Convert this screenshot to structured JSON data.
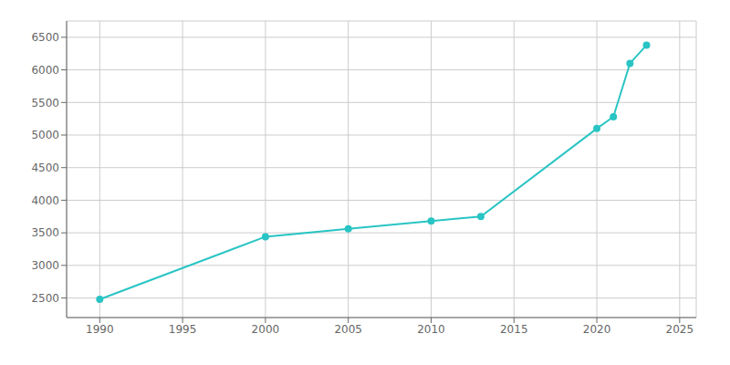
{
  "chart_data": {
    "type": "line",
    "x": [
      1990,
      2000,
      2005,
      2010,
      2013,
      2020,
      2021,
      2022,
      2023
    ],
    "values": [
      2480,
      3440,
      3560,
      3680,
      3750,
      5100,
      5280,
      6100,
      6380
    ],
    "color": "#29c4c4",
    "marker": "circle",
    "xlim": [
      1988,
      2026
    ],
    "ylim": [
      2200,
      6750
    ],
    "xticks": [
      1990,
      1995,
      2000,
      2005,
      2010,
      2015,
      2020,
      2025
    ],
    "yticks": [
      2500,
      3000,
      3500,
      4000,
      4500,
      5000,
      5500,
      6000,
      6500
    ],
    "grid": true
  }
}
